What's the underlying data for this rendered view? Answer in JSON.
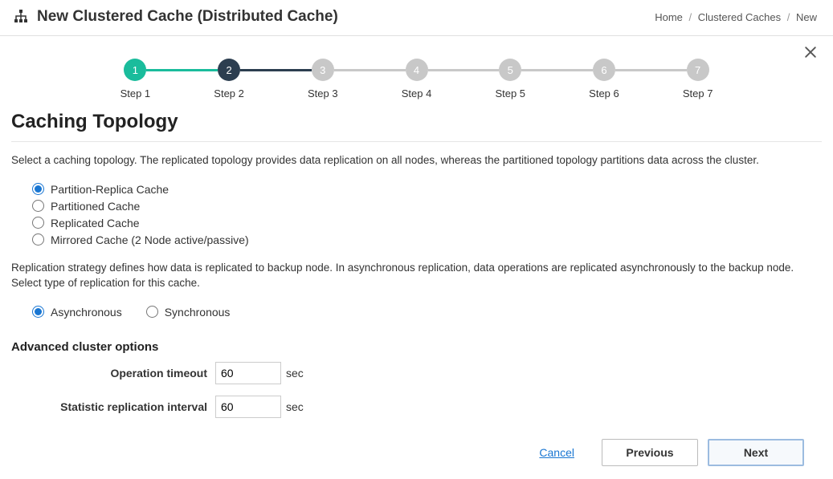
{
  "header": {
    "title": "New Clustered Cache (Distributed Cache)"
  },
  "breadcrumb": {
    "items": [
      "Home",
      "Clustered Caches",
      "New"
    ]
  },
  "stepper": {
    "steps": [
      {
        "num": "1",
        "label": "Step 1",
        "state": "completed",
        "line": "completed"
      },
      {
        "num": "2",
        "label": "Step 2",
        "state": "active",
        "line": "line-active"
      },
      {
        "num": "3",
        "label": "Step 3",
        "state": "pending",
        "line": "pending"
      },
      {
        "num": "4",
        "label": "Step 4",
        "state": "pending",
        "line": "pending"
      },
      {
        "num": "5",
        "label": "Step 5",
        "state": "pending",
        "line": "pending"
      },
      {
        "num": "6",
        "label": "Step 6",
        "state": "pending",
        "line": "pending"
      },
      {
        "num": "7",
        "label": "Step 7",
        "state": "pending",
        "line": "pending"
      }
    ]
  },
  "section": {
    "title": "Caching Topology",
    "topology_desc": "Select a caching topology. The replicated topology provides data replication on all nodes, whereas the partitioned topology partitions data across the cluster.",
    "topology_options": [
      {
        "label": "Partition-Replica Cache",
        "selected": true
      },
      {
        "label": "Partitioned Cache",
        "selected": false
      },
      {
        "label": "Replicated Cache",
        "selected": false
      },
      {
        "label": "Mirrored Cache (2 Node active/passive)",
        "selected": false
      }
    ],
    "replication_desc": "Replication strategy defines how data is replicated to backup node. In asynchronous replication, data operations are replicated asynchronously to the backup node. Select type of replication for this cache.",
    "replication_options": [
      {
        "label": "Asynchronous",
        "selected": true
      },
      {
        "label": "Synchronous",
        "selected": false
      }
    ],
    "advanced_title": "Advanced cluster options",
    "fields": {
      "op_timeout_label": "Operation timeout",
      "op_timeout_value": "60",
      "op_timeout_unit": "sec",
      "stat_interval_label": "Statistic replication interval",
      "stat_interval_value": "60",
      "stat_interval_unit": "sec"
    }
  },
  "footer": {
    "cancel": "Cancel",
    "previous": "Previous",
    "next": "Next"
  },
  "colors": {
    "completed": "#1abc9c",
    "active": "#2c3e50",
    "pending": "#c8c8c8",
    "link": "#1976d2"
  }
}
